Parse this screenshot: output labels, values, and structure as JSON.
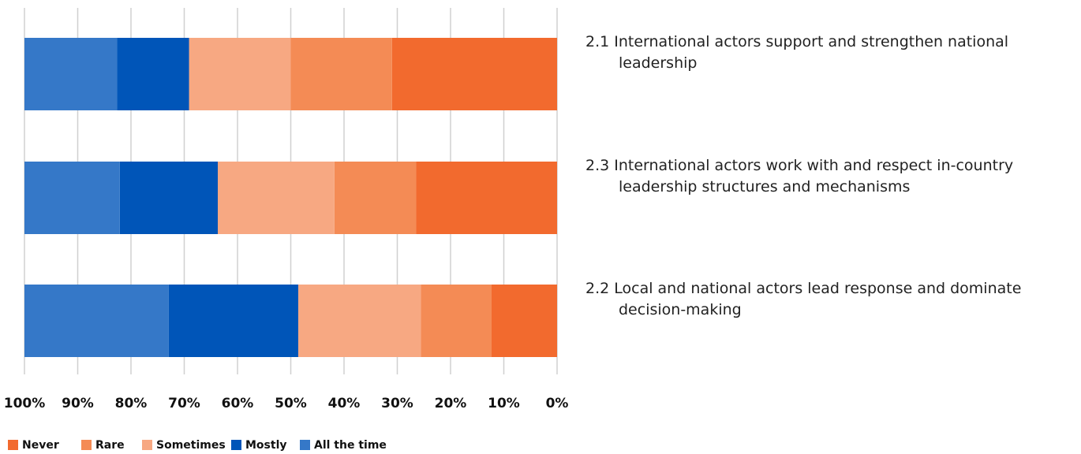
{
  "chart_data": {
    "type": "bar",
    "orientation": "horizontal",
    "stacked": true,
    "x_reversed": true,
    "categories": [
      "2.1 International actors support and strengthen national leadership",
      "2.3 International actors work with and respect in-country leadership structures and mechanisms",
      "2.2 Local and national actors lead response and dominate decision-making"
    ],
    "series": [
      {
        "name": "Never",
        "color": "#f26a2e",
        "values": [
          31,
          26.5,
          12.3
        ]
      },
      {
        "name": "Rare",
        "color": "#f48b55",
        "values": [
          19,
          15.3,
          13.3
        ]
      },
      {
        "name": "Sometimes",
        "color": "#f7a882",
        "values": [
          19.1,
          21.9,
          23
        ]
      },
      {
        "name": "Mostly",
        "color": "#0055b8",
        "values": [
          13.5,
          18.4,
          24.3
        ]
      },
      {
        "name": "All the time",
        "color": "#3578c8",
        "values": [
          17.4,
          17.9,
          27.1
        ]
      }
    ],
    "xlim": [
      0,
      100
    ],
    "xticks": [
      {
        "value": 0,
        "label": "0%"
      },
      {
        "value": 10,
        "label": "10%"
      },
      {
        "value": 20,
        "label": "20%"
      },
      {
        "value": 30,
        "label": "30%"
      },
      {
        "value": 40,
        "label": "40%"
      },
      {
        "value": 50,
        "label": "50%"
      },
      {
        "value": 60,
        "label": "60%"
      },
      {
        "value": 70,
        "label": "70%"
      },
      {
        "value": 80,
        "label": "80%"
      },
      {
        "value": 90,
        "label": "90%"
      },
      {
        "value": 100,
        "label": "100%"
      }
    ],
    "grid": true,
    "legend": "bottom"
  }
}
